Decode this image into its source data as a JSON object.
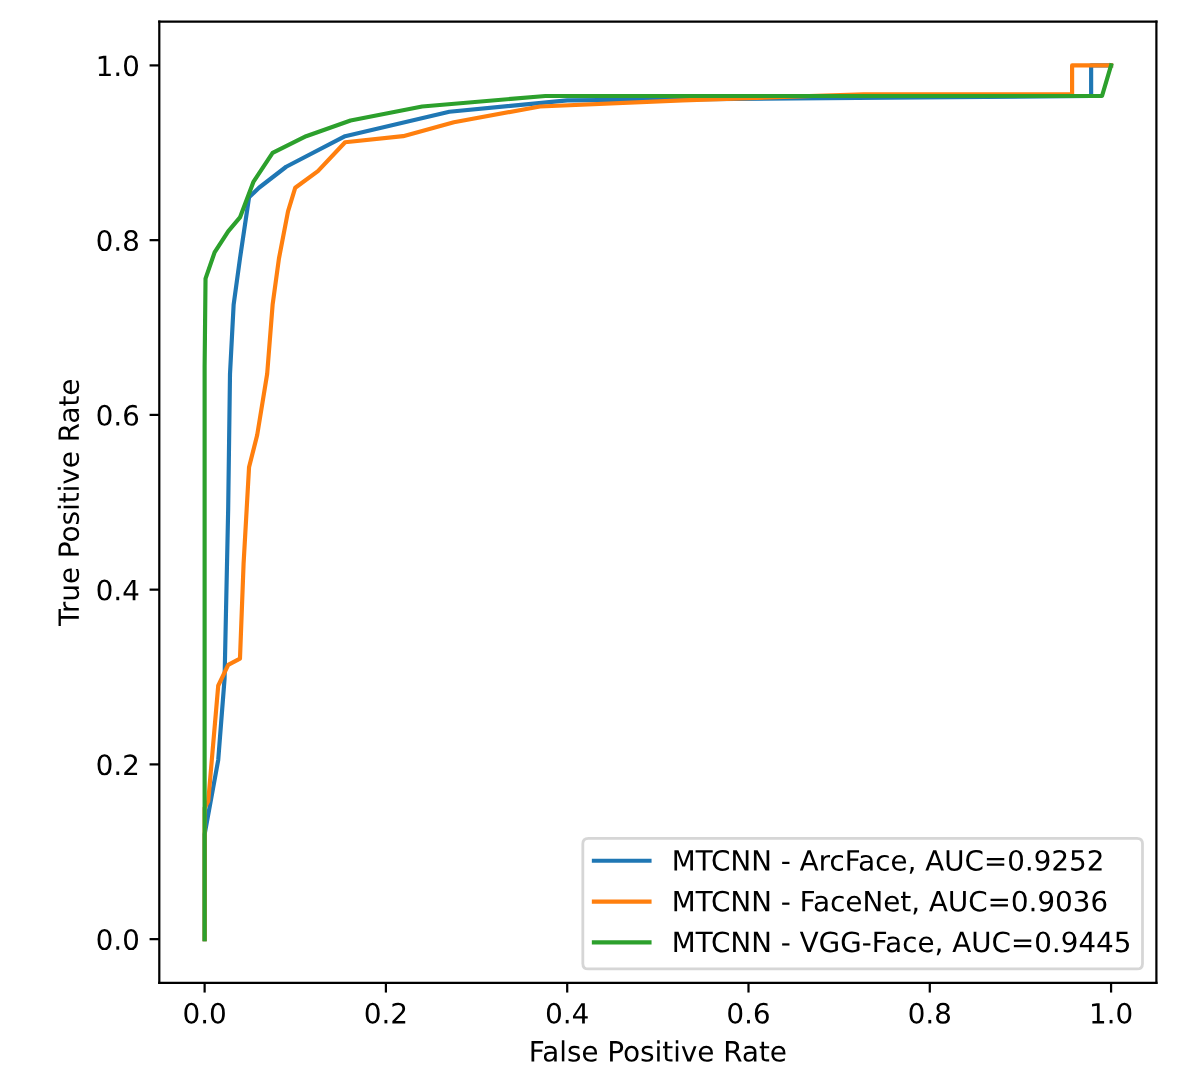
{
  "chart_data": {
    "type": "line",
    "xlabel": "False Positive Rate",
    "ylabel": "True Positive Rate",
    "xlim": [
      -0.05,
      1.05
    ],
    "ylim": [
      -0.05,
      1.05
    ],
    "xticks": [
      {
        "value": 0,
        "label": "0.0"
      },
      0.2,
      0.4,
      0.6,
      0.8,
      {
        "value": 1,
        "label": "1.0"
      }
    ],
    "yticks": [
      {
        "value": 0,
        "label": "0.0"
      },
      0.2,
      0.4,
      0.6,
      0.8,
      {
        "value": 1,
        "label": "1.0"
      }
    ],
    "legend": "bottom right",
    "grid": false,
    "marker": "none",
    "line_style": "solid",
    "series": [
      {
        "name": "MTCNN - ArcFace, AUC=0.9252",
        "color": "#1f77b4",
        "x": [
          0,
          0,
          0.015,
          0.022,
          0.026,
          0.028,
          0.032,
          0.039,
          0.049,
          0.06,
          0.09,
          0.155,
          0.27,
          0.4,
          0.978,
          0.978,
          1.0
        ],
        "values": [
          0,
          0.12,
          0.205,
          0.298,
          0.493,
          0.647,
          0.726,
          0.779,
          0.849,
          0.86,
          0.884,
          0.919,
          0.947,
          0.96,
          0.965,
          1.0,
          1.0
        ]
      },
      {
        "name": "MTCNN - FaceNet, AUC=0.9036",
        "color": "#ff7f0e",
        "x": [
          0,
          0,
          0.004,
          0.015,
          0.026,
          0.039,
          0.043,
          0.049,
          0.058,
          0.069,
          0.075,
          0.082,
          0.092,
          0.1,
          0.125,
          0.155,
          0.219,
          0.275,
          0.37,
          0.527,
          0.727,
          0.957,
          0.957,
          1.0
        ],
        "values": [
          0,
          0.15,
          0.158,
          0.29,
          0.314,
          0.321,
          0.43,
          0.54,
          0.577,
          0.647,
          0.726,
          0.779,
          0.833,
          0.86,
          0.879,
          0.912,
          0.919,
          0.935,
          0.953,
          0.96,
          0.967,
          0.967,
          1.0,
          1.0
        ]
      },
      {
        "name": "MTCNN - VGG-Face, AUC=0.9445",
        "color": "#2ca02c",
        "x": [
          0,
          0,
          0.001,
          0.011,
          0.026,
          0.039,
          0.054,
          0.075,
          0.112,
          0.161,
          0.24,
          0.376,
          0.99,
          1.0
        ],
        "values": [
          0,
          0.656,
          0.756,
          0.786,
          0.81,
          0.826,
          0.867,
          0.9,
          0.919,
          0.937,
          0.953,
          0.965,
          0.965,
          1.0
        ]
      }
    ]
  }
}
